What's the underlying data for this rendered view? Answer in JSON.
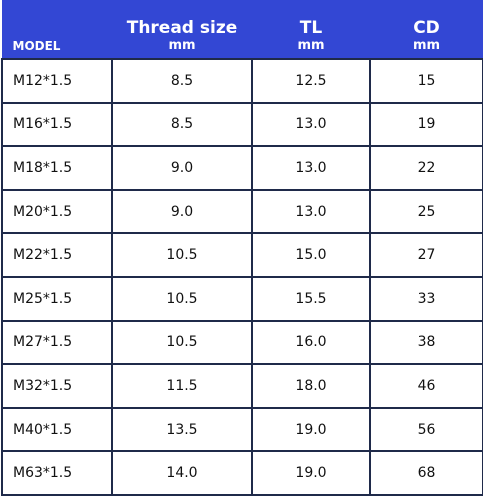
{
  "table": {
    "header": {
      "model": "MODEL",
      "columns": [
        {
          "name": "Thread size",
          "unit": "mm"
        },
        {
          "name": "TL",
          "unit": "mm"
        },
        {
          "name": "CD",
          "unit": "mm"
        }
      ]
    },
    "rows": [
      [
        "M12*1.5",
        "8.5",
        "12.5",
        "15"
      ],
      [
        "M16*1.5",
        "8.5",
        "13.0",
        "19"
      ],
      [
        "M18*1.5",
        "9.0",
        "13.0",
        "22"
      ],
      [
        "M20*1.5",
        "9.0",
        "13.0",
        "25"
      ],
      [
        "M22*1.5",
        "10.5",
        "15.0",
        "27"
      ],
      [
        "M25*1.5",
        "10.5",
        "15.5",
        "33"
      ],
      [
        "M27*1.5",
        "10.5",
        "16.0",
        "38"
      ],
      [
        "M32*1.5",
        "11.5",
        "18.0",
        "46"
      ],
      [
        "M40*1.5",
        "13.5",
        "19.0",
        "56"
      ],
      [
        "M63*1.5",
        "14.0",
        "19.0",
        "68"
      ]
    ]
  }
}
